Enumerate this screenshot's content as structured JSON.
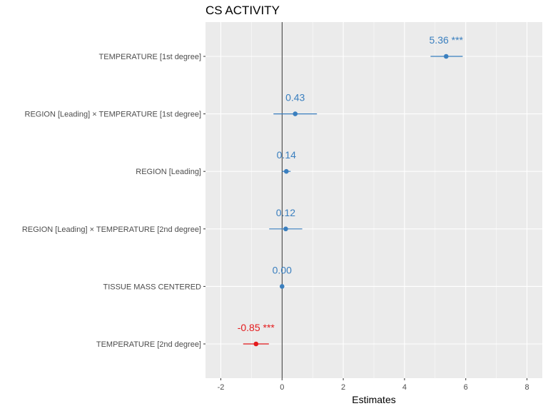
{
  "chart_data": {
    "type": "forest",
    "title": "CS ACTIVITY",
    "xlabel": "Estimates",
    "xlim": [
      -2.5,
      8.5
    ],
    "x_ticks": [
      -2,
      0,
      2,
      4,
      6,
      8
    ],
    "reference_line": 0,
    "grid": true,
    "colors": {
      "positive": "#3a7fbf",
      "negative": "#e41a1c",
      "panel": "#ebebeb",
      "grid": "#ffffff"
    },
    "terms": [
      {
        "label": "TEMPERATURE [1st degree]",
        "estimate": 5.36,
        "ci_low": 4.85,
        "ci_high": 5.9,
        "annotation": "5.36 ***",
        "sign": "positive"
      },
      {
        "label": "REGION [Leading] × TEMPERATURE [1st degree]",
        "estimate": 0.43,
        "ci_low": -0.28,
        "ci_high": 1.14,
        "annotation": "0.43",
        "sign": "positive"
      },
      {
        "label": "REGION [Leading]",
        "estimate": 0.14,
        "ci_low": 0.0,
        "ci_high": 0.28,
        "annotation": "0.14",
        "sign": "positive"
      },
      {
        "label": "REGION [Leading] × TEMPERATURE [2nd degree]",
        "estimate": 0.12,
        "ci_low": -0.42,
        "ci_high": 0.66,
        "annotation": "0.12",
        "sign": "positive"
      },
      {
        "label": "TISSUE MASS CENTERED",
        "estimate": 0.0,
        "ci_low": -0.02,
        "ci_high": 0.02,
        "annotation": "0.00",
        "sign": "positive"
      },
      {
        "label": "TEMPERATURE [2nd degree]",
        "estimate": -0.85,
        "ci_low": -1.27,
        "ci_high": -0.43,
        "annotation": "-0.85 ***",
        "sign": "negative"
      }
    ]
  }
}
